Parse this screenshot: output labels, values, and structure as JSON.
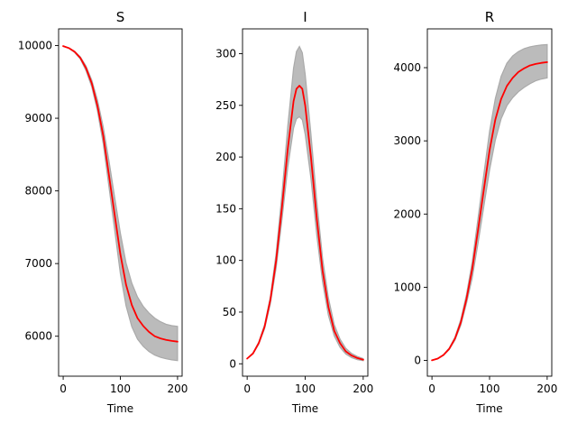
{
  "chart_data": [
    {
      "type": "line",
      "title": "S",
      "xlabel": "Time",
      "ylabel": "",
      "xlim": [
        -8,
        208
      ],
      "ylim": [
        5450,
        10230
      ],
      "xticks": [
        0,
        100,
        200
      ],
      "yticks": [
        6000,
        7000,
        8000,
        9000,
        10000
      ],
      "grid": false,
      "colors": {
        "mean": "#ff0000",
        "band_fill": "#bbbbbb",
        "band_edge": "#aaaaaa"
      },
      "series": [
        {
          "role": "mean",
          "x": [
            0,
            10,
            20,
            30,
            40,
            50,
            60,
            70,
            80,
            90,
            100,
            110,
            120,
            130,
            140,
            150,
            160,
            170,
            180,
            190,
            200
          ],
          "values": [
            9993,
            9965,
            9915,
            9830,
            9690,
            9480,
            9170,
            8760,
            8220,
            7670,
            7130,
            6710,
            6430,
            6250,
            6140,
            6060,
            6000,
            5970,
            5950,
            5935,
            5925
          ]
        },
        {
          "role": "band_upper",
          "x": [
            0,
            10,
            20,
            30,
            40,
            50,
            60,
            70,
            80,
            90,
            100,
            110,
            120,
            130,
            140,
            150,
            160,
            170,
            180,
            190,
            200
          ],
          "values": [
            9995,
            9968,
            9922,
            9845,
            9720,
            9525,
            9250,
            8880,
            8420,
            7910,
            7420,
            7010,
            6730,
            6540,
            6410,
            6320,
            6250,
            6200,
            6165,
            6145,
            6135
          ]
        },
        {
          "role": "band_lower",
          "x": [
            0,
            10,
            20,
            30,
            40,
            50,
            60,
            70,
            80,
            90,
            100,
            110,
            120,
            130,
            140,
            150,
            160,
            170,
            180,
            190,
            200
          ],
          "values": [
            9991,
            9962,
            9905,
            9815,
            9655,
            9430,
            9100,
            8650,
            8060,
            7460,
            6860,
            6420,
            6130,
            5960,
            5860,
            5790,
            5740,
            5710,
            5690,
            5675,
            5665
          ]
        }
      ]
    },
    {
      "type": "line",
      "title": "I",
      "xlabel": "Time",
      "ylabel": "",
      "xlim": [
        -8,
        208
      ],
      "ylim": [
        -12,
        324
      ],
      "xticks": [
        0,
        100,
        200
      ],
      "yticks": [
        0,
        50,
        100,
        150,
        200,
        250,
        300
      ],
      "grid": false,
      "colors": {
        "mean": "#ff0000",
        "band_fill": "#bbbbbb",
        "band_edge": "#aaaaaa"
      },
      "series": [
        {
          "role": "mean",
          "x": [
            0,
            10,
            20,
            30,
            40,
            50,
            60,
            70,
            80,
            85,
            90,
            95,
            100,
            110,
            120,
            130,
            140,
            150,
            160,
            170,
            180,
            190,
            200
          ],
          "values": [
            5,
            10,
            20,
            36,
            62,
            100,
            152,
            208,
            254,
            266,
            269,
            266,
            250,
            200,
            140,
            90,
            55,
            32,
            20,
            12,
            8,
            5.5,
            4
          ]
        },
        {
          "role": "band_upper",
          "x": [
            0,
            10,
            20,
            30,
            40,
            50,
            60,
            70,
            80,
            85,
            90,
            95,
            100,
            110,
            120,
            130,
            140,
            150,
            160,
            170,
            180,
            190,
            200
          ],
          "values": [
            5,
            10.5,
            21,
            38,
            65,
            107,
            165,
            230,
            286,
            302,
            307,
            301,
            280,
            222,
            157,
            102,
            64,
            38,
            24,
            15,
            10,
            7,
            5
          ]
        },
        {
          "role": "band_lower",
          "x": [
            0,
            10,
            20,
            30,
            40,
            50,
            60,
            70,
            80,
            85,
            90,
            95,
            100,
            110,
            120,
            130,
            140,
            150,
            160,
            170,
            180,
            190,
            200
          ],
          "values": [
            5,
            9.5,
            19,
            34,
            58,
            93,
            140,
            190,
            228,
            237,
            239,
            236,
            222,
            179,
            124,
            79,
            47,
            27,
            16,
            9.5,
            6,
            4,
            3
          ]
        }
      ]
    },
    {
      "type": "line",
      "title": "R",
      "xlabel": "Time",
      "ylabel": "",
      "xlim": [
        -8,
        208
      ],
      "ylim": [
        -215,
        4530
      ],
      "xticks": [
        0,
        100,
        200
      ],
      "yticks": [
        0,
        1000,
        2000,
        3000,
        4000
      ],
      "grid": false,
      "colors": {
        "mean": "#ff0000",
        "band_fill": "#bbbbbb",
        "band_edge": "#aaaaaa"
      },
      "series": [
        {
          "role": "mean",
          "x": [
            0,
            10,
            20,
            30,
            40,
            50,
            60,
            70,
            80,
            90,
            100,
            110,
            120,
            130,
            140,
            150,
            160,
            170,
            180,
            190,
            200
          ],
          "values": [
            2,
            25,
            75,
            160,
            300,
            520,
            840,
            1250,
            1780,
            2330,
            2870,
            3290,
            3570,
            3750,
            3860,
            3940,
            3990,
            4030,
            4050,
            4065,
            4075
          ]
        },
        {
          "role": "band_upper",
          "x": [
            0,
            10,
            20,
            30,
            40,
            50,
            60,
            70,
            80,
            90,
            100,
            110,
            120,
            130,
            140,
            150,
            160,
            170,
            180,
            190,
            200
          ],
          "values": [
            2,
            28,
            80,
            170,
            320,
            560,
            900,
            1350,
            1940,
            2540,
            3130,
            3580,
            3880,
            4060,
            4160,
            4220,
            4260,
            4285,
            4300,
            4310,
            4315
          ]
        },
        {
          "role": "band_lower",
          "x": [
            0,
            10,
            20,
            30,
            40,
            50,
            60,
            70,
            80,
            90,
            100,
            110,
            120,
            130,
            140,
            150,
            160,
            170,
            180,
            190,
            200
          ],
          "values": [
            2,
            22,
            70,
            150,
            280,
            480,
            780,
            1130,
            1600,
            2100,
            2600,
            3010,
            3300,
            3480,
            3590,
            3670,
            3730,
            3780,
            3820,
            3845,
            3860
          ]
        }
      ]
    }
  ]
}
